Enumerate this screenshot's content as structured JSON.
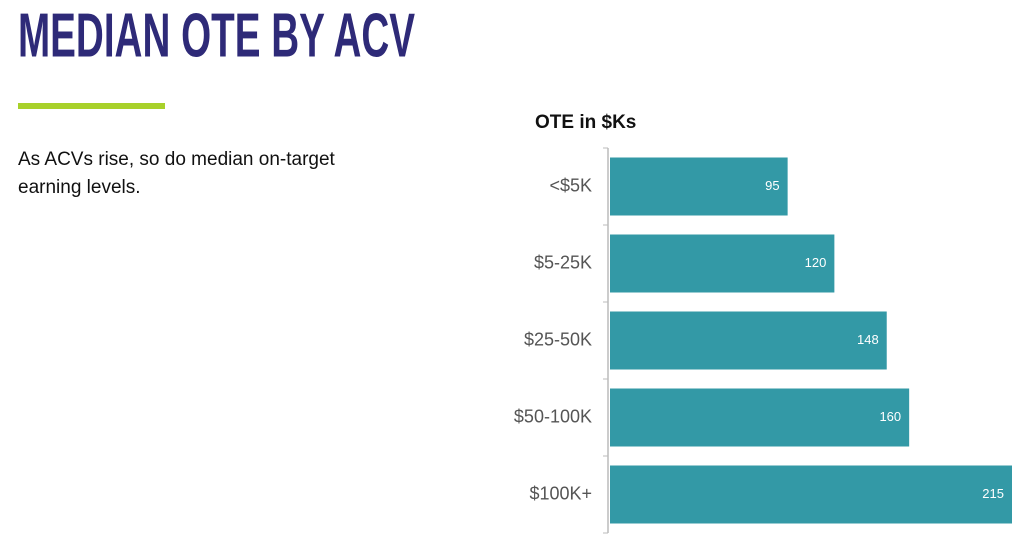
{
  "header": {
    "title": "MEDIAN OTE BY ACV",
    "description": "As ACVs rise, so do median on-target earning levels."
  },
  "chart_data": {
    "type": "bar",
    "orientation": "horizontal",
    "title": "OTE in $Ks",
    "categories": [
      "<$5K",
      "$5-25K",
      "$25-50K",
      "$50-100K",
      "$100K+"
    ],
    "values": [
      95,
      120,
      148,
      160,
      215
    ],
    "color": "#3399a6"
  }
}
